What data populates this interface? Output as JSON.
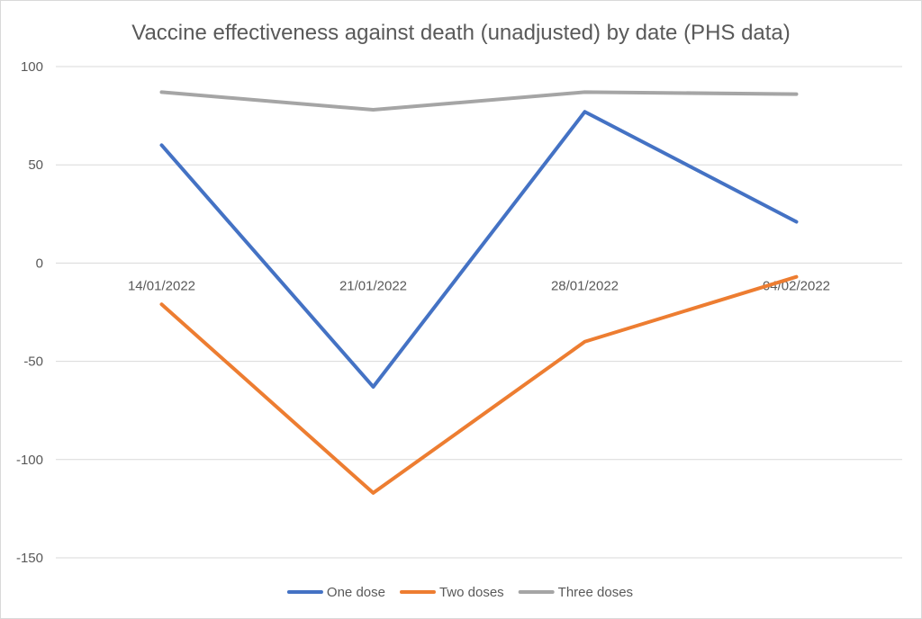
{
  "chart_data": {
    "type": "line",
    "title": "Vaccine effectiveness against death (unadjusted) by date (PHS data)",
    "xlabel": "",
    "ylabel": "",
    "categories": [
      "14/01/2022",
      "21/01/2022",
      "28/01/2022",
      "04/02/2022"
    ],
    "ylim": [
      -150,
      100
    ],
    "yticks": [
      100,
      50,
      0,
      -50,
      -100,
      -150
    ],
    "grid": true,
    "legend_position": "bottom",
    "series": [
      {
        "name": "One dose",
        "color": "#4472C4",
        "values": [
          60,
          -63,
          77,
          21
        ]
      },
      {
        "name": "Two doses",
        "color": "#ED7D31",
        "values": [
          -21,
          -117,
          -40,
          -7
        ]
      },
      {
        "name": "Three doses",
        "color": "#A5A5A5",
        "values": [
          87,
          78,
          87,
          86
        ]
      }
    ]
  }
}
